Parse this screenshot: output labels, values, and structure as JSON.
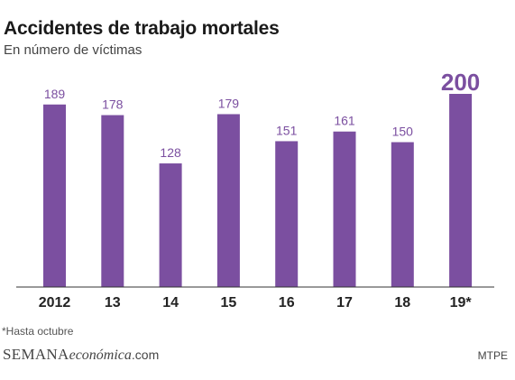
{
  "chart_data": {
    "type": "bar",
    "title": "Accidentes de trabajo mortales",
    "subtitle": "En número de víctimas",
    "categories": [
      "2012",
      "13",
      "14",
      "15",
      "16",
      "17",
      "18",
      "19*"
    ],
    "values": [
      189,
      178,
      128,
      179,
      151,
      161,
      150,
      200
    ],
    "highlight_index": 7,
    "ylim": [
      0,
      200
    ],
    "grid": false,
    "bar_color": "#7b4fa0"
  },
  "footnote": "*Hasta octubre",
  "brand": {
    "part1": "SEMANA",
    "part2": "económica",
    "part3": ".com"
  },
  "source": "MTPE"
}
